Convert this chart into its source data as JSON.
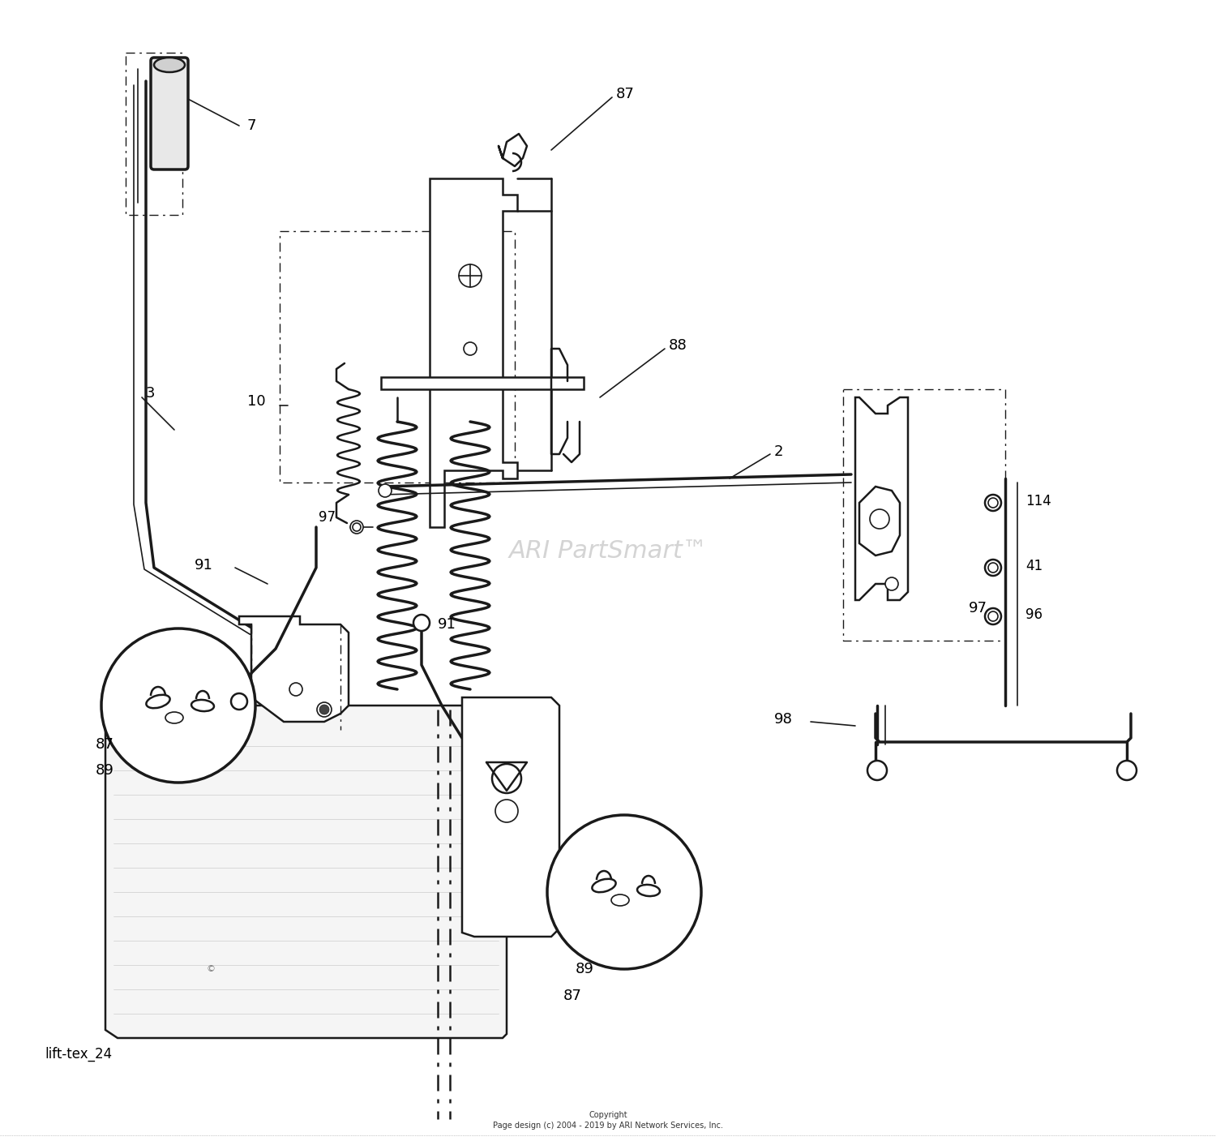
{
  "background_color": "#ffffff",
  "line_color": "#000000",
  "copyright_line1": "Copyright",
  "copyright_line2": "Page design (c) 2004 - 2019 by ARI Network Services, Inc.",
  "watermark_text": "ARI PartSmart™",
  "label_text": "lift-tex_24",
  "fig_width": 15.0,
  "fig_height": 14.07,
  "dpi": 100
}
